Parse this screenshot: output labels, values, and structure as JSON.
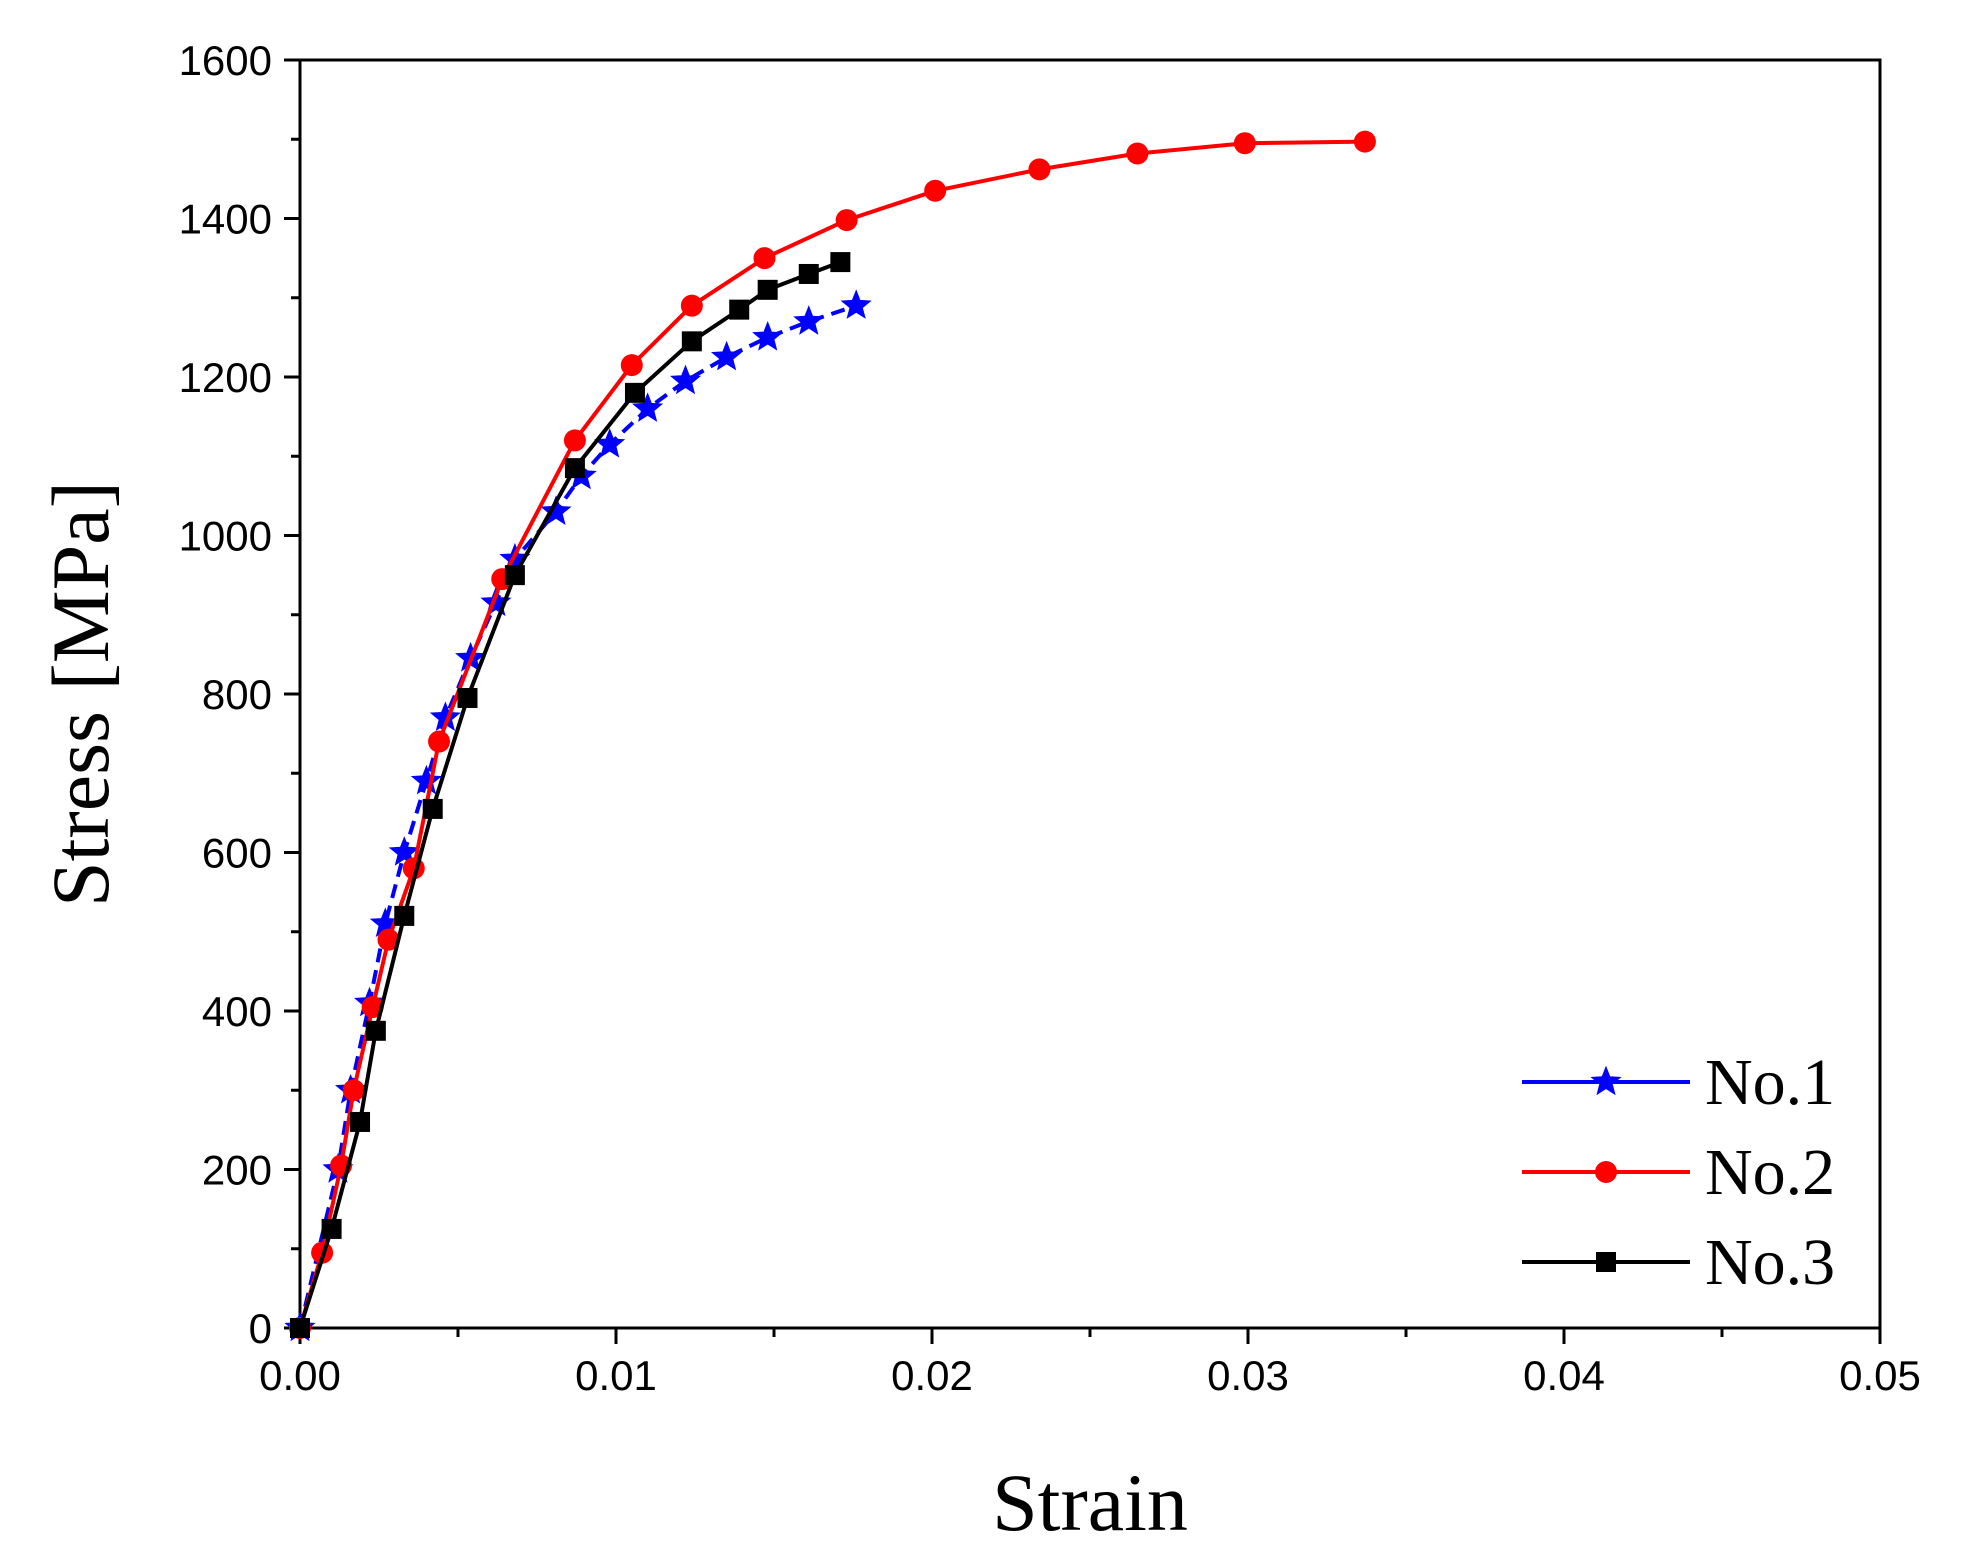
{
  "chart_data": {
    "type": "line",
    "title": "",
    "xlabel": "Strain",
    "ylabel": "Stress [MPa]",
    "xlim": [
      0,
      0.05
    ],
    "ylim": [
      0,
      1600
    ],
    "xticks": [
      "0.00",
      "0.01",
      "0.02",
      "0.03",
      "0.04",
      "0.05"
    ],
    "xtick_values": [
      0,
      0.01,
      0.02,
      0.03,
      0.04,
      0.05
    ],
    "yticks": [
      "0",
      "200",
      "400",
      "600",
      "800",
      "1000",
      "1200",
      "1400",
      "1600"
    ],
    "ytick_values": [
      0,
      200,
      400,
      600,
      800,
      1000,
      1200,
      1400,
      1600
    ],
    "grid": false,
    "legend_position": "bottom-right",
    "series": [
      {
        "name": "No.1",
        "color": "#0000ff",
        "marker": "star",
        "line_style": "dashed",
        "x": [
          0,
          0.0012,
          0.0016,
          0.0022,
          0.0027,
          0.0033,
          0.004,
          0.0046,
          0.0054,
          0.0062,
          0.0068,
          0.0081,
          0.0089,
          0.0098,
          0.011,
          0.0122,
          0.0135,
          0.0148,
          0.0161,
          0.0176
        ],
        "y": [
          0,
          200,
          300,
          410,
          510,
          600,
          690,
          770,
          845,
          915,
          970,
          1030,
          1075,
          1115,
          1160,
          1195,
          1225,
          1250,
          1270,
          1290
        ]
      },
      {
        "name": "No.2",
        "color": "#ff0000",
        "marker": "circle",
        "line_style": "solid",
        "x": [
          0,
          0.0007,
          0.0013,
          0.0017,
          0.0023,
          0.0028,
          0.0036,
          0.0044,
          0.0064,
          0.0087,
          0.0105,
          0.0124,
          0.0147,
          0.0173,
          0.0201,
          0.0234,
          0.0265,
          0.0299,
          0.0337
        ],
        "y": [
          0,
          95,
          205,
          300,
          405,
          490,
          580,
          740,
          945,
          1120,
          1215,
          1290,
          1350,
          1398,
          1435,
          1462,
          1482,
          1495,
          1497
        ]
      },
      {
        "name": "No.3",
        "color": "#000000",
        "marker": "square",
        "line_style": "solid",
        "x": [
          0,
          0.001,
          0.0019,
          0.0024,
          0.0033,
          0.0042,
          0.0053,
          0.0068,
          0.0087,
          0.0106,
          0.0124,
          0.0139,
          0.0148,
          0.0161,
          0.0171
        ],
        "y": [
          0,
          125,
          260,
          375,
          520,
          655,
          795,
          950,
          1085,
          1180,
          1245,
          1285,
          1310,
          1330,
          1345
        ]
      }
    ]
  }
}
